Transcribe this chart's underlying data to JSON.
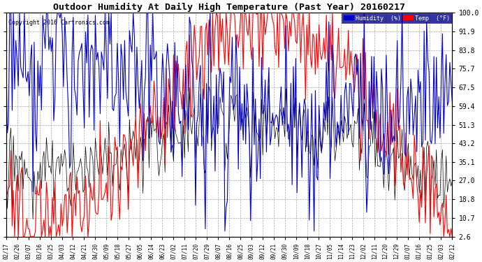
{
  "title": "Outdoor Humidity At Daily High Temperature (Past Year) 20160217",
  "copyright": "Copyright 2016 Cartronics.com",
  "background_color": "#ffffff",
  "plot_bg_color": "#ffffff",
  "grid_color": "#aaaaaa",
  "humidity_color": "#0000cd",
  "temp_color": "#ff0000",
  "black_line_color": "#000000",
  "ylim": [
    2.6,
    100.0
  ],
  "yticks": [
    2.6,
    10.7,
    18.8,
    27.0,
    35.1,
    43.2,
    51.3,
    59.4,
    67.5,
    75.7,
    83.8,
    91.9,
    100.0
  ],
  "xtick_labels": [
    "02/17",
    "02/26",
    "03/07",
    "03/16",
    "03/25",
    "04/03",
    "04/12",
    "04/21",
    "04/30",
    "05/09",
    "05/18",
    "05/27",
    "06/05",
    "06/14",
    "06/23",
    "07/02",
    "07/11",
    "07/20",
    "07/29",
    "08/07",
    "08/16",
    "08/25",
    "09/03",
    "09/12",
    "09/21",
    "09/30",
    "10/09",
    "10/18",
    "10/27",
    "11/05",
    "11/14",
    "11/23",
    "12/02",
    "12/11",
    "12/20",
    "12/29",
    "01/07",
    "01/16",
    "01/25",
    "02/03",
    "02/12"
  ],
  "n_points": 366,
  "legend_bg": "#00008b",
  "legend_text_color": "#ffffff"
}
